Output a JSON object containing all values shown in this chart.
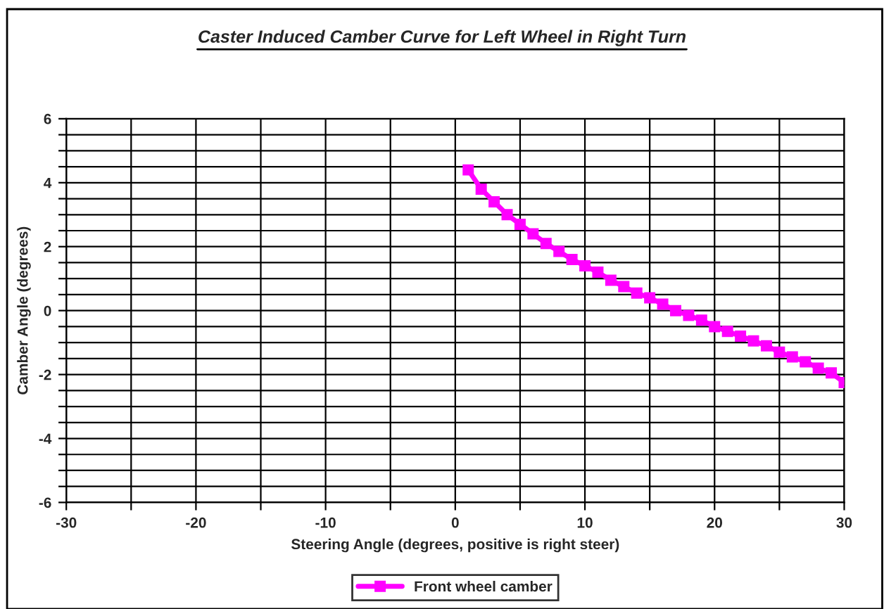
{
  "chart_data": {
    "type": "line",
    "title": "Caster Induced Camber Curve for Left Wheel in Right Turn",
    "xlabel": "Steering Angle (degrees, positive is right steer)",
    "ylabel": "Camber Angle (degrees)",
    "x": [
      1,
      2,
      3,
      4,
      5,
      6,
      7,
      8,
      9,
      10,
      11,
      12,
      13,
      14,
      15,
      16,
      17,
      18,
      19,
      20,
      21,
      22,
      23,
      24,
      25,
      26,
      27,
      28,
      29,
      30
    ],
    "series": [
      {
        "name": "Front wheel camber",
        "color": "#ff00ff",
        "values": [
          4.4,
          3.8,
          3.4,
          3.0,
          2.7,
          2.4,
          2.1,
          1.85,
          1.6,
          1.4,
          1.2,
          0.95,
          0.75,
          0.55,
          0.4,
          0.2,
          0.0,
          -0.15,
          -0.3,
          -0.5,
          -0.65,
          -0.8,
          -0.95,
          -1.1,
          -1.3,
          -1.45,
          -1.6,
          -1.8,
          -1.95,
          -2.25
        ]
      }
    ],
    "xlim": [
      -30,
      30
    ],
    "ylim": [
      -6,
      6
    ],
    "xticks": [
      -30,
      {
        "value": -25,
        "label": null
      },
      -20,
      {
        "value": -15,
        "label": null
      },
      -10,
      {
        "value": -5,
        "label": null
      },
      0,
      {
        "value": 5,
        "label": null
      },
      10,
      {
        "value": 15,
        "label": null
      },
      20,
      {
        "value": 25,
        "label": null
      },
      30
    ],
    "yticks": [
      -6,
      {
        "value": -5.5,
        "label": null
      },
      {
        "value": -5,
        "label": null
      },
      {
        "value": -4.5,
        "label": null
      },
      -4,
      {
        "value": -3.5,
        "label": null
      },
      {
        "value": -3,
        "label": null
      },
      {
        "value": -2.5,
        "label": null
      },
      -2,
      {
        "value": -1.5,
        "label": null
      },
      {
        "value": -1,
        "label": null
      },
      {
        "value": -0.5,
        "label": null
      },
      0,
      {
        "value": 0.5,
        "label": null
      },
      {
        "value": 1,
        "label": null
      },
      {
        "value": 1.5,
        "label": null
      },
      2,
      {
        "value": 2.5,
        "label": null
      },
      {
        "value": 3,
        "label": null
      },
      {
        "value": 3.5,
        "label": null
      },
      4,
      {
        "value": 4.5,
        "label": null
      },
      {
        "value": 5,
        "label": null
      },
      {
        "value": 5.5,
        "label": null
      },
      6
    ],
    "grid": true,
    "legend": "bottom",
    "marker": "square",
    "line_style": "solid"
  }
}
